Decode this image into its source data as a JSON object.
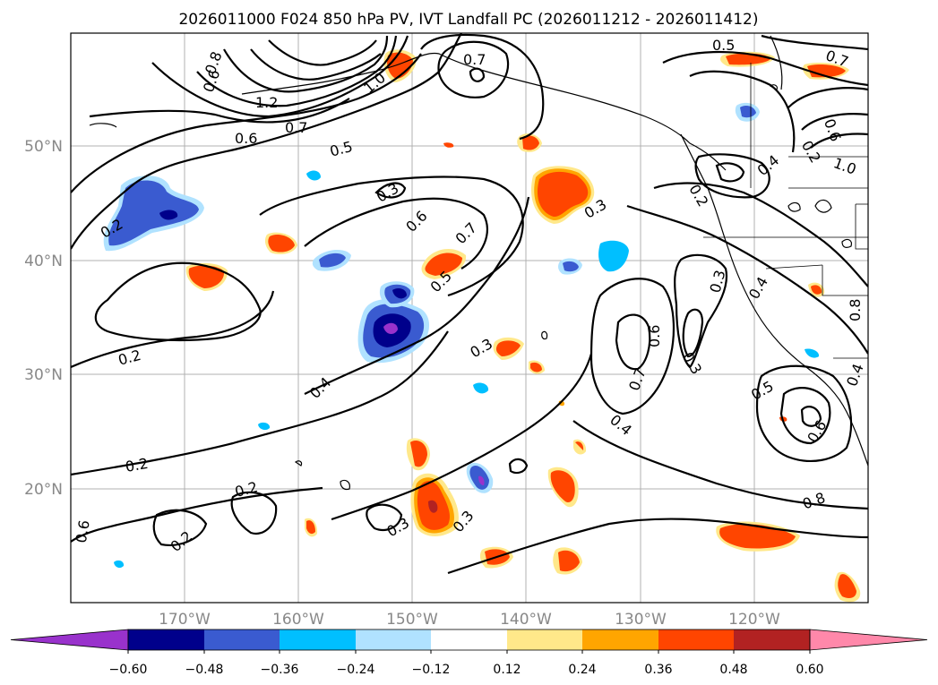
{
  "title": "2026011000 F024 850 hPa PV, IVT Landfall PC (2026011212 - 2026011412)",
  "lat_labels": [
    "50°N",
    "40°N",
    "30°N",
    "20°N"
  ],
  "lon_labels": [
    "170°W",
    "160°W",
    "150°W",
    "140°W",
    "130°W",
    "120°W"
  ],
  "contour_labels": [
    "0.7",
    "0.6",
    "0.8",
    "1.2",
    "1.0",
    "0.7",
    "0.6",
    "0.5",
    "0.3",
    "0.6",
    "0.7",
    "0.5",
    "0.3",
    "0.2",
    "0.2",
    "0.4",
    "0.3",
    "0.3",
    "0.2",
    "0.2",
    "0.2",
    "0.3",
    "0.3",
    "0.4",
    "0.6",
    "0.7",
    "0.3",
    "0.4",
    "0.5",
    "0.6",
    "0.8",
    "0.5",
    "0.7",
    "0.6",
    "1.0",
    "0.8",
    "0.6",
    "0.4",
    "0.2",
    "0.2",
    "0.4",
    "0.7",
    "0.6",
    "0.5",
    "0.5"
  ],
  "colorbar": {
    "ticks": [
      "−0.60",
      "−0.48",
      "−0.36",
      "−0.24",
      "−0.12",
      "0.12",
      "0.24",
      "0.36",
      "0.48",
      "0.60"
    ],
    "colors": [
      "#9932cc",
      "#00008b",
      "#3a5bd0",
      "#00bfff",
      "#b0e2ff",
      "#ffffff",
      "#ffe88a",
      "#ffa500",
      "#ff4500",
      "#b22222",
      "#ff88aa"
    ]
  },
  "fill_colors": {
    "neg_light": "#b0e2ff",
    "neg_mid": "#00bfff",
    "neg_dark": "#3a5bd0",
    "neg_darker": "#00008b",
    "neg_darkest": "#9932cc",
    "pos_light": "#ffe88a",
    "pos_mid": "#ffa500",
    "pos_dark": "#ff4500",
    "pos_darker": "#b22222"
  }
}
